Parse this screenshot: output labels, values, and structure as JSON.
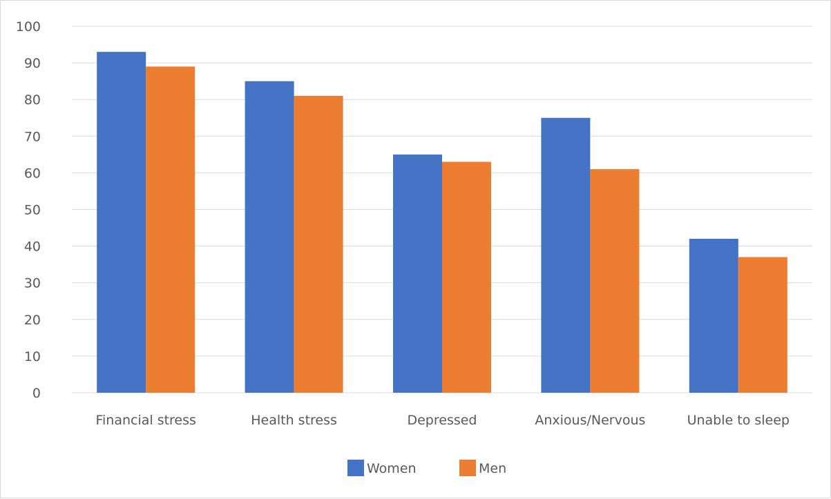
{
  "chart_data": {
    "type": "bar",
    "categories": [
      "Financial stress",
      "Health stress",
      "Depressed",
      "Anxious/Nervous",
      "Unable to sleep"
    ],
    "series": [
      {
        "name": "Women",
        "color": "#4472C4",
        "values": [
          93,
          85,
          65,
          75,
          42
        ]
      },
      {
        "name": "Men",
        "color": "#ED7D31",
        "values": [
          89,
          81,
          63,
          61,
          37
        ]
      }
    ],
    "yticks": [
      0,
      10,
      20,
      30,
      40,
      50,
      60,
      70,
      80,
      90,
      100
    ],
    "ylim": [
      0,
      100
    ],
    "grid": true,
    "legend_position": "bottom",
    "gridline_color": "#d9d9d9",
    "text_color": "#595959"
  }
}
